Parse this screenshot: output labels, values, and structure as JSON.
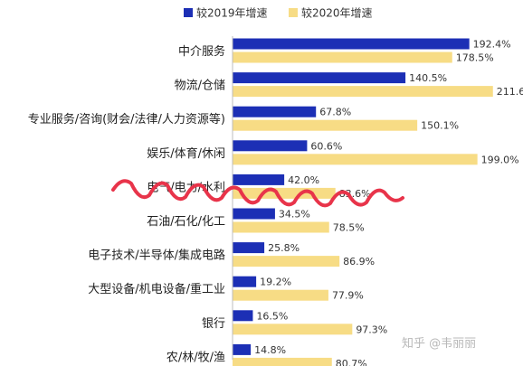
{
  "chart_data": {
    "type": "bar",
    "orientation": "horizontal",
    "categories": [
      "中介服务",
      "物流/仓储",
      "专业服务/咨询(财会/法律/人力资源等)",
      "娱乐/体育/休闲",
      "电气/电力/水利",
      "石油/石化/化工",
      "电子技术/半导体/集成电路",
      "大型设备/机电设备/重工业",
      "银行",
      "农/林/牧/渔"
    ],
    "series": [
      {
        "name": "较2019年增速",
        "color": "#1c2fb5",
        "values": [
          192.4,
          140.5,
          67.8,
          60.6,
          42.0,
          34.5,
          25.8,
          19.2,
          16.5,
          14.8
        ],
        "labels": [
          "192.4%",
          "140.5%",
          "67.8%",
          "60.6%",
          "42.0%",
          "34.5%",
          "25.8%",
          "19.2%",
          "16.5%",
          "14.8%"
        ]
      },
      {
        "name": "较2020年增速",
        "color": "#f7dc85",
        "values": [
          178.5,
          211.6,
          150.1,
          199.0,
          83.6,
          78.5,
          86.9,
          77.9,
          97.3,
          80.7
        ],
        "labels": [
          "178.5%",
          "211.6",
          "150.1%",
          "199.0%",
          "83.6%",
          "78.5%",
          "86.9%",
          "77.9%",
          "97.3%",
          "80.7%"
        ]
      }
    ],
    "legend_position": "top",
    "grid": false
  },
  "watermark": "知乎 @韦丽丽",
  "annotation": {
    "type": "wavy-line",
    "color": "#e8344a"
  }
}
